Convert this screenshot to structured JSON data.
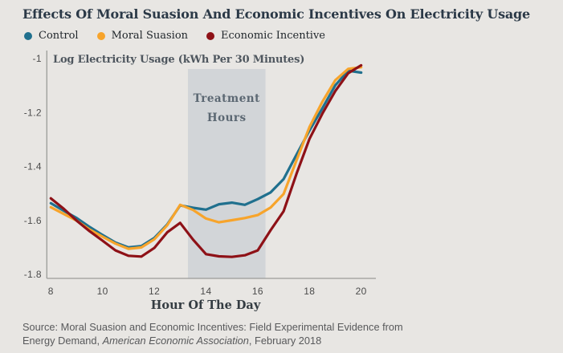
{
  "title": "Effects Of Moral Suasion And Economic Incentives On Electricity Usage",
  "legend": [
    {
      "label": "Control",
      "color": "#20708e"
    },
    {
      "label": "Moral Suasion",
      "color": "#f7a42b"
    },
    {
      "label": "Economic Incentive",
      "color": "#8e1117"
    }
  ],
  "chart_data": {
    "type": "line",
    "inner_title": "Log Electricity Usage (kWh Per 30 Minutes)",
    "xlabel": "Hour Of The Day",
    "xlim": [
      8,
      20
    ],
    "ylim": [
      -1.8,
      -1
    ],
    "x_ticks": [
      8,
      10,
      12,
      14,
      16,
      18,
      20
    ],
    "y_ticks": [
      -1,
      -1.2,
      -1.4,
      -1.6,
      -1.8
    ],
    "grid": false,
    "legend_position": "top-left",
    "band": {
      "from": 13.3,
      "to": 16.3,
      "label_line1": "Treatment",
      "label_line2": "Hours",
      "color": "#d2d5d8"
    },
    "x": [
      8,
      8.5,
      9,
      9.5,
      10,
      10.5,
      11,
      11.5,
      12,
      12.5,
      13,
      13.5,
      14,
      14.5,
      15,
      15.5,
      16,
      16.5,
      17,
      17.5,
      18,
      18.5,
      19,
      19.5,
      20
    ],
    "series": [
      {
        "name": "Control",
        "color": "#20708e",
        "values": [
          -1.537,
          -1.565,
          -1.592,
          -1.625,
          -1.655,
          -1.683,
          -1.701,
          -1.696,
          -1.666,
          -1.616,
          -1.545,
          -1.554,
          -1.561,
          -1.541,
          -1.535,
          -1.543,
          -1.522,
          -1.497,
          -1.448,
          -1.357,
          -1.268,
          -1.185,
          -1.1,
          -1.046,
          -1.053
        ]
      },
      {
        "name": "Moral Suasion",
        "color": "#f7a42b",
        "values": [
          -1.552,
          -1.577,
          -1.602,
          -1.635,
          -1.661,
          -1.687,
          -1.706,
          -1.701,
          -1.671,
          -1.619,
          -1.543,
          -1.562,
          -1.594,
          -1.608,
          -1.6,
          -1.592,
          -1.581,
          -1.553,
          -1.503,
          -1.378,
          -1.255,
          -1.161,
          -1.081,
          -1.039,
          -1.033
        ]
      },
      {
        "name": "Economic Incentive",
        "color": "#8e1117",
        "values": [
          -1.519,
          -1.558,
          -1.602,
          -1.641,
          -1.676,
          -1.712,
          -1.732,
          -1.735,
          -1.703,
          -1.645,
          -1.61,
          -1.672,
          -1.726,
          -1.734,
          -1.736,
          -1.73,
          -1.712,
          -1.637,
          -1.567,
          -1.428,
          -1.299,
          -1.205,
          -1.121,
          -1.055,
          -1.026
        ]
      }
    ]
  },
  "source": {
    "prefix": "Source: Moral Suasion and Economic Incentives: Field Experimental Evidence from Energy Demand, ",
    "italic": "American Economic Association",
    "suffix": ", February 2018"
  }
}
